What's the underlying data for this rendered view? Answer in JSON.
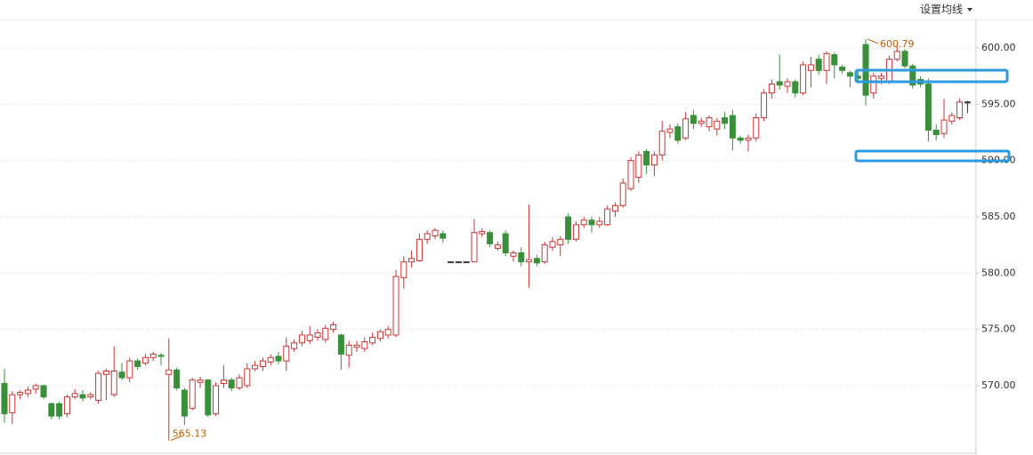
{
  "toolbar": {
    "label": "设置均线"
  },
  "chart_data": {
    "type": "candlestick",
    "open": [
      570.2,
      567.6,
      569.2,
      569.3,
      569.7,
      570.0,
      568.4,
      568.4,
      567.5,
      569.0,
      569.2,
      569.0,
      568.7,
      571.0,
      569.2,
      571.2,
      570.7,
      572.2,
      572.0,
      572.5,
      572.7,
      571.0,
      571.4,
      569.6,
      568.0,
      570.3,
      570.5,
      567.5,
      570.2,
      570.5,
      569.8,
      570.0,
      571.5,
      571.7,
      572.1,
      572.6,
      572.2,
      573.3,
      573.8,
      574.0,
      574.3,
      574.1,
      575.0,
      574.5,
      572.7,
      573.4,
      573.3,
      573.8,
      574.2,
      574.5,
      574.5,
      579.6,
      581.0,
      581.1,
      583.0,
      583.3,
      583.5,
      581,
      581,
      581,
      581.0,
      583.5,
      583.6,
      582.2,
      583.5,
      581.5,
      581.8,
      581.0,
      581.3,
      581.0,
      582.3,
      582.5,
      585.0,
      583.0,
      584.3,
      584.7,
      584.3,
      584.3,
      585.5,
      586.0,
      587.5,
      588.5,
      590.8,
      589.6,
      590.5,
      592.5,
      593.0,
      592.0,
      594.0,
      593.3,
      593.0,
      592.8,
      593.8,
      594.0,
      592.0,
      591.8,
      592.0,
      593.8,
      596.0,
      597.0,
      596.6,
      597.0,
      596.0,
      598.0,
      599.0,
      598.0,
      599.4,
      598.3,
      597.8,
      597.5,
      600.3,
      596.0,
      597.3,
      597.0,
      599.0,
      599.7,
      598.4,
      597.2,
      596.8,
      592.7,
      592.4,
      593.5,
      593.8,
      595.2
    ],
    "high": [
      571.5,
      569.5,
      569.6,
      569.9,
      570.2,
      570.1,
      568.5,
      568.6,
      569.2,
      569.7,
      569.6,
      569.4,
      571.3,
      571.5,
      573.5,
      572.0,
      572.5,
      572.4,
      572.8,
      573.0,
      572.9,
      574.2,
      571.6,
      569.8,
      570.7,
      570.8,
      570.6,
      570.3,
      571.8,
      570.7,
      571.0,
      572.0,
      572.2,
      572.5,
      572.8,
      573.0,
      574.3,
      574.1,
      574.9,
      575.3,
      575.0,
      575.4,
      575.7,
      574.6,
      574.0,
      574.0,
      574.3,
      574.7,
      575.0,
      575.3,
      580.3,
      581.5,
      582.0,
      583.5,
      583.8,
      584.0,
      583.8,
      581,
      581,
      581,
      584.8,
      584.0,
      583.8,
      582.8,
      583.8,
      582.0,
      582.3,
      586.1,
      581.6,
      582.8,
      583.2,
      583.3,
      585.3,
      584.6,
      585.0,
      585.0,
      585.0,
      586.0,
      586.3,
      588.4,
      590.3,
      590.8,
      591.0,
      590.8,
      593.5,
      593.2,
      593.3,
      594.3,
      594.5,
      593.8,
      594.0,
      593.8,
      594.3,
      594.5,
      592.2,
      592.3,
      594.2,
      596.3,
      597.2,
      599.4,
      597.3,
      597.2,
      598.8,
      599.2,
      599.4,
      599.7,
      599.6,
      598.5,
      598.0,
      598.0,
      600.79,
      597.8,
      597.8,
      599.3,
      600.3,
      599.9,
      598.6,
      597.5,
      597.3,
      593.2,
      595.5,
      594.3,
      595.5,
      595.3
    ],
    "low": [
      566.7,
      566.6,
      568.8,
      569.0,
      569.3,
      568.8,
      567.0,
      567.0,
      567.2,
      568.8,
      568.6,
      568.8,
      568.4,
      568.7,
      569.0,
      570.5,
      570.3,
      571.4,
      571.8,
      572.2,
      571.8,
      565.13,
      569.6,
      566.5,
      567.8,
      569.8,
      567.2,
      567.3,
      569.8,
      569.5,
      569.6,
      569.8,
      571.3,
      571.3,
      571.8,
      571.9,
      571.3,
      573.0,
      573.5,
      573.7,
      574.0,
      573.8,
      574.7,
      571.4,
      571.6,
      573.0,
      573.0,
      573.6,
      573.9,
      574.2,
      574.3,
      578.6,
      580.5,
      581.0,
      582.6,
      583.0,
      582.7,
      581,
      581,
      581,
      581.0,
      583.2,
      582.3,
      582.0,
      581.5,
      581.0,
      580.6,
      578.7,
      580.6,
      580.8,
      582.0,
      581.5,
      582.6,
      582.8,
      584.0,
      583.6,
      584.0,
      584.2,
      585.0,
      585.8,
      587.3,
      588.0,
      588.8,
      588.6,
      590.0,
      592.0,
      591.5,
      591.8,
      592.8,
      593.0,
      592.6,
      592.2,
      592.8,
      590.9,
      591.5,
      590.8,
      591.7,
      593.5,
      595.5,
      596.3,
      596.0,
      595.6,
      595.8,
      596.5,
      597.6,
      596.8,
      597.3,
      597.7,
      596.5,
      597.0,
      594.9,
      595.5,
      596.8,
      596.8,
      598.8,
      598.2,
      596.4,
      596.5,
      591.7,
      591.8,
      592.0,
      593.2,
      593.6,
      594.2
    ],
    "close": [
      567.5,
      569.2,
      569.4,
      569.6,
      570.0,
      569.0,
      567.3,
      567.3,
      569.0,
      569.3,
      568.9,
      569.2,
      571.1,
      571.3,
      571.3,
      570.7,
      572.2,
      571.7,
      572.5,
      572.8,
      572.6,
      571.4,
      569.8,
      567.3,
      570.5,
      570.5,
      567.4,
      570.0,
      570.5,
      569.8,
      570.7,
      571.5,
      571.8,
      572.2,
      572.5,
      572.2,
      573.5,
      573.8,
      574.5,
      574.5,
      574.7,
      575.1,
      575.4,
      572.8,
      573.6,
      573.6,
      573.9,
      574.3,
      574.8,
      575.0,
      579.7,
      581.0,
      581.3,
      583.0,
      583.5,
      583.8,
      583.1,
      581,
      581,
      581,
      583.6,
      583.7,
      582.6,
      582.5,
      581.8,
      581.8,
      581.0,
      581.2,
      580.9,
      582.5,
      582.8,
      583.0,
      583.0,
      584.3,
      584.7,
      584.3,
      584.6,
      585.7,
      586.0,
      588.0,
      590.0,
      590.5,
      589.6,
      590.5,
      592.6,
      592.8,
      591.8,
      593.7,
      593.3,
      593.5,
      593.8,
      593.5,
      593.3,
      592.0,
      591.8,
      592.0,
      593.8,
      596.0,
      596.8,
      596.7,
      597.0,
      596.0,
      598.5,
      598.5,
      598.0,
      599.5,
      598.5,
      598.0,
      597.5,
      597.3,
      595.8,
      597.5,
      597.5,
      599.0,
      599.7,
      598.4,
      596.7,
      596.8,
      592.7,
      592.3,
      593.6,
      594.0,
      595.2,
      595.2
    ],
    "up_color": "#cc3333",
    "down_color": "#3a8f3a",
    "flat_color": "#333333",
    "ylim": [
      563.84,
      604.26
    ],
    "yticks": [
      {
        "value": 570,
        "label": "570.00"
      },
      {
        "value": 575,
        "label": "575.00"
      },
      {
        "value": 580,
        "label": "580.00"
      },
      {
        "value": 585,
        "label": "585.00"
      },
      {
        "value": 590,
        "label": "590.00"
      },
      {
        "value": 595,
        "label": "595.00"
      },
      {
        "value": 600,
        "label": "600.00"
      }
    ],
    "grid": true
  }
}
